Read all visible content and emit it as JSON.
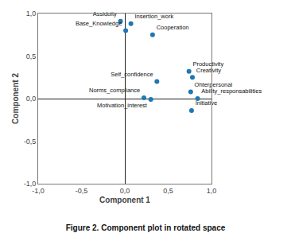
{
  "chart_data": {
    "type": "scatter",
    "title": "Figure 2. Component plot in rotated space",
    "xlabel": "Component 1",
    "ylabel": "Component 2",
    "labels": [
      "Assiduity",
      "Insertion_work",
      "Base_Knowledge",
      "Cooperation",
      "Productivity",
      "Creativity",
      "Self_confidence",
      "Ohterpersonal",
      "Norms_compliance",
      "Ability_responsabilities",
      "Motivation_interest",
      "Initiative"
    ],
    "x": [
      -0.05,
      0.07,
      0.01,
      0.32,
      0.74,
      0.78,
      0.37,
      0.76,
      0.22,
      0.84,
      0.3,
      0.77
    ],
    "values": [
      0.91,
      0.88,
      0.8,
      0.75,
      0.32,
      0.25,
      0.2,
      0.08,
      0.01,
      0.0,
      -0.01,
      -0.14
    ],
    "xlim": [
      -1.0,
      1.0
    ],
    "ylim": [
      -1.0,
      1.0
    ],
    "xticks": [
      {
        "value": -1.0,
        "label": "-1,0"
      },
      {
        "value": -0.5,
        "label": "-0,5"
      },
      {
        "value": 0.0,
        "label": "0,0"
      },
      {
        "value": 0.5,
        "label": "0,5"
      },
      {
        "value": 1.0,
        "label": "1,0"
      }
    ],
    "yticks": [
      {
        "value": -1.0,
        "label": "-1,0"
      },
      {
        "value": -0.5,
        "label": "-0,5"
      },
      {
        "value": 0.0,
        "label": "0,0"
      },
      {
        "value": 0.5,
        "label": "0,5"
      },
      {
        "value": 1.0,
        "label": "1,0"
      }
    ],
    "marker": "circle",
    "grid": false
  }
}
